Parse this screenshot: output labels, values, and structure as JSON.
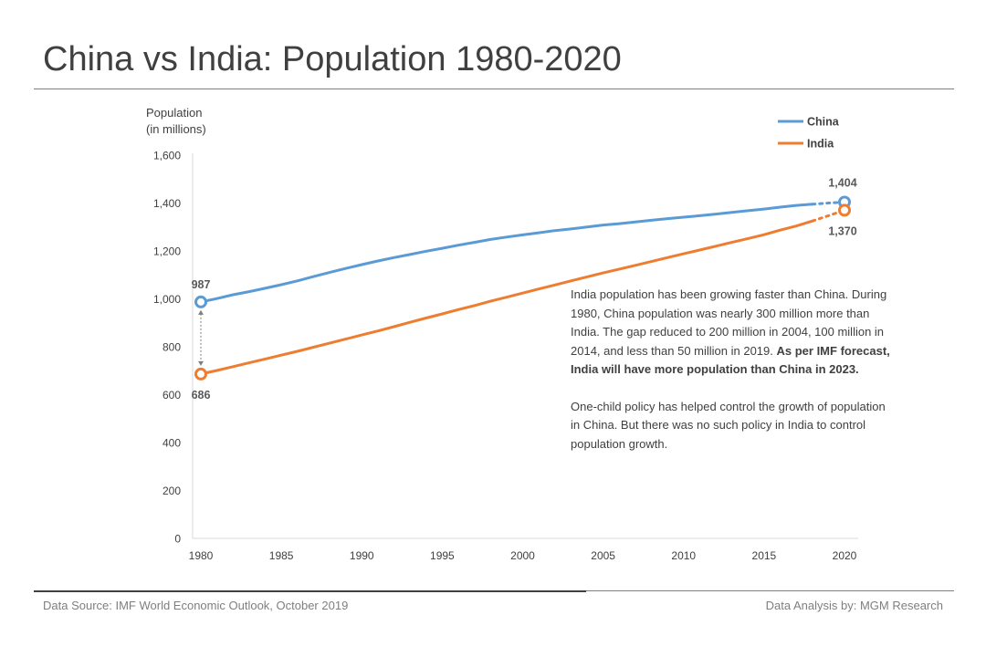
{
  "page": {
    "title": "China vs India: Population 1980-2020",
    "footer_source": "Data Source:  IMF World Economic Outlook, October 2019",
    "footer_credit": "Data Analysis by: MGM Research"
  },
  "annotation": {
    "para1_text": "India population has been growing faster than China. During 1980, China population  was nearly 300 million more than India. The gap reduced to 200 million in 2004, 100 million in 2014, and less than 50 million in 2019. ",
    "para1_bold": "As per IMF forecast, India will have more population than China in 2023.",
    "para2_text": "One-child policy has helped control the growth of population in China. But there was no such policy in India to control population growth."
  },
  "chart_data": {
    "type": "line",
    "title": "China vs India: Population 1980-2020",
    "ylabel_line1": "Population",
    "ylabel_line2": "(in millions)",
    "xlabel": "",
    "xlim": [
      1980,
      2020
    ],
    "ylim": [
      0,
      1600
    ],
    "yticks": [
      0,
      200,
      400,
      600,
      800,
      1000,
      1200,
      1400,
      1600
    ],
    "ytick_labels": [
      "0",
      "200",
      "400",
      "600",
      "800",
      "1,000",
      "1,200",
      "1,400",
      "1,600"
    ],
    "xticks": [
      1980,
      1985,
      1990,
      1995,
      2000,
      2005,
      2010,
      2015,
      2020
    ],
    "xtick_labels": [
      "1980",
      "1985",
      "1990",
      "1995",
      "2000",
      "2005",
      "2010",
      "2015",
      "2020"
    ],
    "forecast_from": 2018,
    "legend_position": "top-right",
    "x": [
      1980,
      1981,
      1982,
      1983,
      1984,
      1985,
      1986,
      1987,
      1988,
      1989,
      1990,
      1991,
      1992,
      1993,
      1994,
      1995,
      1996,
      1997,
      1998,
      1999,
      2000,
      2001,
      2002,
      2003,
      2004,
      2005,
      2006,
      2007,
      2008,
      2009,
      2010,
      2011,
      2012,
      2013,
      2014,
      2015,
      2016,
      2017,
      2018,
      2019,
      2020
    ],
    "series": [
      {
        "name": "China",
        "color": "#5b9bd5",
        "values": [
          987,
          1001,
          1017,
          1030,
          1044,
          1059,
          1075,
          1093,
          1110,
          1127,
          1143,
          1158,
          1172,
          1185,
          1199,
          1211,
          1224,
          1236,
          1248,
          1258,
          1267,
          1276,
          1285,
          1292,
          1300,
          1308,
          1314,
          1321,
          1328,
          1335,
          1341,
          1347,
          1354,
          1361,
          1368,
          1375,
          1383,
          1390,
          1395,
          1400,
          1404
        ],
        "start_label": "987",
        "end_label": "1,404"
      },
      {
        "name": "India",
        "color": "#ed7d31",
        "values": [
          686,
          701,
          717,
          733,
          749,
          765,
          781,
          798,
          815,
          832,
          849,
          866,
          884,
          902,
          920,
          937,
          955,
          972,
          990,
          1007,
          1024,
          1041,
          1058,
          1075,
          1092,
          1108,
          1124,
          1140,
          1156,
          1172,
          1188,
          1204,
          1220,
          1236,
          1252,
          1268,
          1287,
          1304,
          1325,
          1347,
          1370
        ],
        "start_label": "686",
        "end_label": "1,370"
      }
    ]
  }
}
